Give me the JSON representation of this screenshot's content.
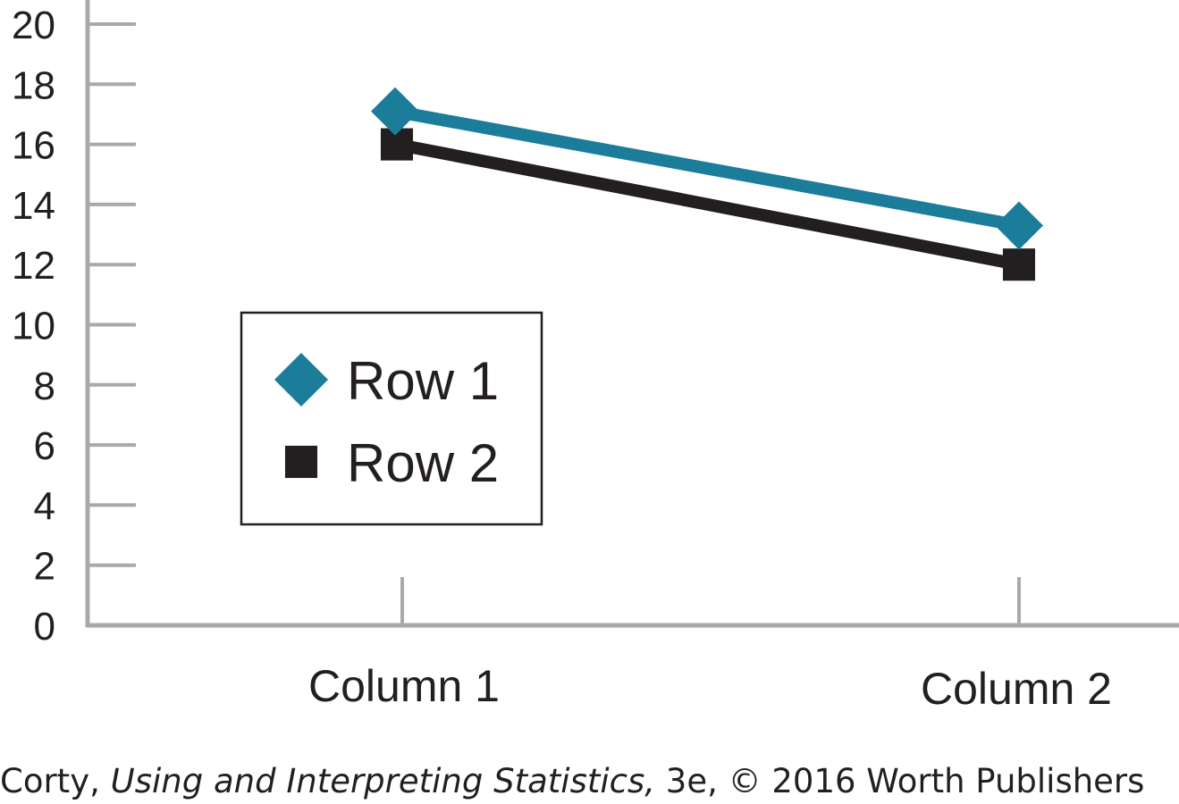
{
  "chart_data": {
    "type": "line",
    "categories": [
      "Column 1",
      "Column 2"
    ],
    "series": [
      {
        "name": "Row 1",
        "values": [
          17.1,
          13.3
        ],
        "color": "#1b7d9a",
        "marker": "diamond"
      },
      {
        "name": "Row 2",
        "values": [
          16.0,
          12.0
        ],
        "color": "#231f20",
        "marker": "square"
      }
    ],
    "yticks": [
      0,
      2,
      4,
      6,
      8,
      10,
      12,
      14,
      16,
      18,
      20
    ],
    "ylim": [
      0,
      20
    ],
    "title": "",
    "xlabel": "",
    "ylabel": "",
    "grid": false,
    "legend_position": "center-left",
    "axis_color": "#a7a9ac"
  },
  "credit": {
    "author": "Corty, ",
    "book": "Using and Interpreting Statistics,",
    "rest": " 3e, © 2016 Worth Publishers"
  }
}
